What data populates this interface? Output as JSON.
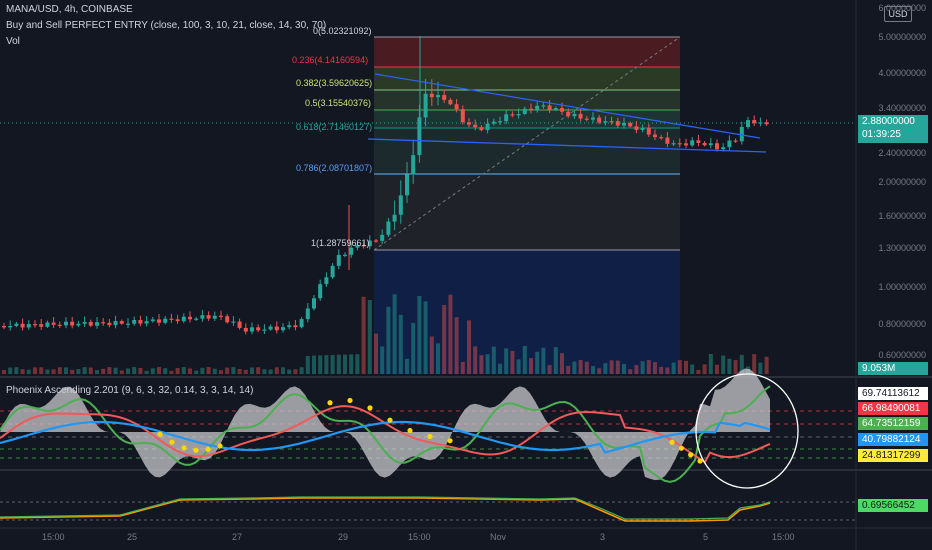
{
  "header": {
    "symbol_line": "MANA/USD, 4h, COINBASE",
    "indicator_line": "Buy and Sell PERFECT ENTRY (close, 100, 3, 10, 21, close, 14, 30, 70)",
    "vol_label": "Vol",
    "currency_button": "USD"
  },
  "price_axis": {
    "labels": [
      "6.00000000",
      "5.00000000",
      "4.00000000",
      "3.40000000",
      "2.40000000",
      "2.00000000",
      "1.60000000",
      "1.30000000",
      "1.00000000",
      "0.80000000",
      "0.60000000"
    ],
    "current_price": "2.88000000",
    "countdown": "01:39:25",
    "volume_value": "9.053M"
  },
  "fib_levels": [
    {
      "label": "0(5.02321092)",
      "color": "#d1d4dc"
    },
    {
      "label": "0.236(4.14160594)",
      "color": "#f23645"
    },
    {
      "label": "0.382(3.59620625)",
      "color": "#cbe37a"
    },
    {
      "label": "0.5(3.15540376)",
      "color": "#cbe37a"
    },
    {
      "label": "0.618(2.71460127)",
      "color": "#26a69a"
    },
    {
      "label": "0.786(2.08701807)",
      "color": "#5b9cf6"
    },
    {
      "label": "1(1.28759661)",
      "color": "#d1d4dc"
    }
  ],
  "oscillator": {
    "title": "Phoenix Ascending 2.201 (9, 6, 3, 32, 0.14, 3, 3, 14, 14)",
    "values": [
      {
        "label": "69.74113612",
        "bg": "#ffffff",
        "fg": "#131722"
      },
      {
        "label": "66.98490081",
        "bg": "#f23645",
        "fg": "#ffffff"
      },
      {
        "label": "64.73512159",
        "bg": "#4caf50",
        "fg": "#ffffff"
      },
      {
        "label": "40.79882124",
        "bg": "#2196f3",
        "fg": "#ffffff"
      },
      {
        "label": "24.81317299",
        "bg": "#ffeb3b",
        "fg": "#131722"
      }
    ]
  },
  "sub_indicator": {
    "value": "0.69566452",
    "bg": "#4cd964"
  },
  "time_axis": {
    "labels": [
      "15:00",
      "25",
      "27",
      "29",
      "15:00",
      "Nov",
      "3",
      "5",
      "15:00"
    ]
  },
  "colors": {
    "up": "#26a69a",
    "down": "#ef5350",
    "background": "#131722"
  }
}
